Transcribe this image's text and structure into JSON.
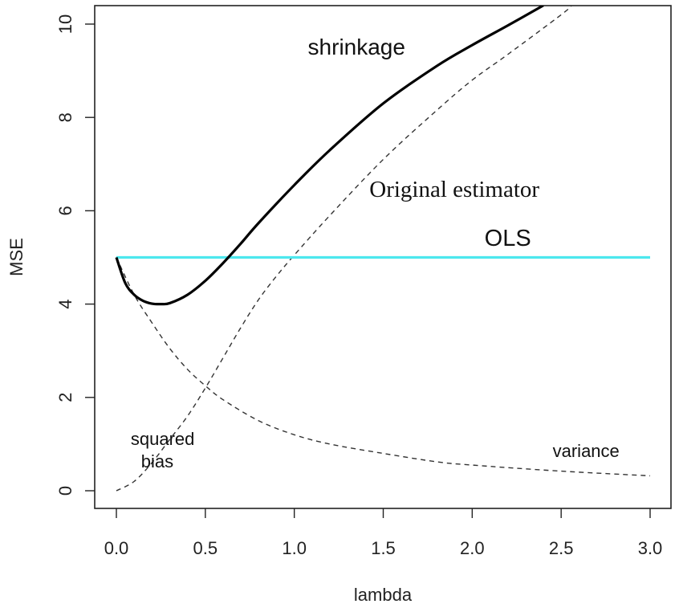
{
  "chart_data": {
    "type": "line",
    "xlabel": "lambda",
    "ylabel": "MSE",
    "xlim": [
      0,
      3
    ],
    "ylim": [
      0,
      10
    ],
    "x_ticks": [
      "0.0",
      "0.5",
      "1.0",
      "1.5",
      "2.0",
      "2.5",
      "3.0"
    ],
    "y_ticks": [
      "0",
      "2",
      "4",
      "6",
      "8",
      "10"
    ],
    "grid": false,
    "series": [
      {
        "name": "shrinkage",
        "style": "solid-thick",
        "color": "#000000",
        "x": [
          0,
          0.05,
          0.1,
          0.15,
          0.2,
          0.25,
          0.3,
          0.4,
          0.5,
          0.6,
          0.7,
          0.8,
          1.0,
          1.2,
          1.5,
          1.8,
          2.0,
          2.2,
          2.4
        ],
        "y": [
          5.0,
          4.45,
          4.2,
          4.07,
          4.01,
          4.0,
          4.02,
          4.2,
          4.5,
          4.88,
          5.3,
          5.74,
          6.55,
          7.3,
          8.3,
          9.1,
          9.55,
          9.97,
          10.4
        ]
      },
      {
        "name": "squared bias",
        "style": "dashed",
        "color": "#333333",
        "x": [
          0,
          0.1,
          0.2,
          0.3,
          0.4,
          0.5,
          0.6,
          0.7,
          0.8,
          0.9,
          1.0,
          1.2,
          1.5,
          1.8,
          2.0,
          2.2,
          2.5,
          2.56
        ],
        "y": [
          0.0,
          0.2,
          0.6,
          1.1,
          1.6,
          2.2,
          2.85,
          3.5,
          4.1,
          4.6,
          5.05,
          5.9,
          7.1,
          8.15,
          8.8,
          9.35,
          10.2,
          10.4
        ]
      },
      {
        "name": "variance",
        "style": "dashed",
        "color": "#333333",
        "x": [
          0,
          0.1,
          0.2,
          0.3,
          0.4,
          0.5,
          0.6,
          0.8,
          1.0,
          1.2,
          1.5,
          1.8,
          2.0,
          2.5,
          3.0
        ],
        "y": [
          5.0,
          4.2,
          3.6,
          3.05,
          2.6,
          2.25,
          1.95,
          1.5,
          1.2,
          1.0,
          0.8,
          0.62,
          0.55,
          0.42,
          0.32
        ]
      },
      {
        "name": "OLS",
        "style": "solid",
        "color": "#4de8ee",
        "x": [
          0,
          3
        ],
        "y": [
          5,
          5
        ]
      }
    ],
    "annotations": [
      {
        "text": "shrinkage",
        "x": 1.35,
        "y": 9.35,
        "font": "sans",
        "size": 28
      },
      {
        "text": "Original estimator",
        "x": 1.9,
        "y": 6.3,
        "font": "serif",
        "size": 29
      },
      {
        "text": "OLS",
        "x": 2.2,
        "y": 5.25,
        "font": "sans",
        "size": 29
      },
      {
        "text": "squared",
        "x": 0.26,
        "y": 0.98,
        "font": "sans",
        "size": 22
      },
      {
        "text": "bias",
        "x": 0.23,
        "y": 0.5,
        "font": "sans",
        "size": 22
      },
      {
        "text": "variance",
        "x": 2.64,
        "y": 0.72,
        "font": "sans",
        "size": 22
      }
    ]
  }
}
